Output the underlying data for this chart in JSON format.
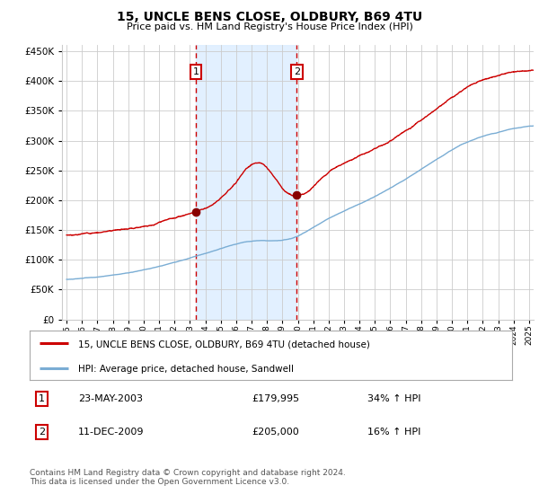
{
  "title": "15, UNCLE BENS CLOSE, OLDBURY, B69 4TU",
  "subtitle": "Price paid vs. HM Land Registry's House Price Index (HPI)",
  "legend_line1": "15, UNCLE BENS CLOSE, OLDBURY, B69 4TU (detached house)",
  "legend_line2": "HPI: Average price, detached house, Sandwell",
  "transaction1_date": "23-MAY-2003",
  "transaction1_price": 179995,
  "transaction1_label": "34% ↑ HPI",
  "transaction2_date": "11-DEC-2009",
  "transaction2_price": 205000,
  "transaction2_label": "16% ↑ HPI",
  "footer": "Contains HM Land Registry data © Crown copyright and database right 2024.\nThis data is licensed under the Open Government Licence v3.0.",
  "red_color": "#cc0000",
  "blue_color": "#7aadd4",
  "background_color": "#ffffff",
  "grid_color": "#cccccc",
  "shade_color": "#ddeeff",
  "marker_color": "#880000",
  "ylim": [
    0,
    460000
  ],
  "start_year": 1995,
  "end_year": 2025,
  "transaction1_year": 2003.38,
  "transaction2_year": 2009.94
}
